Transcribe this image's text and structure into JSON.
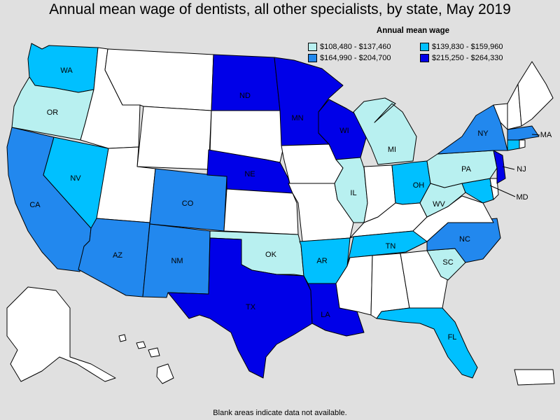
{
  "title": "Annual mean wage of dentists, all other specialists, by state, May 2019",
  "legend": {
    "title": "Annual mean wage",
    "items": [
      {
        "range": "$108,480 - $137,460",
        "color": "#b8f0f0"
      },
      {
        "range": "$139,830 - $159,960",
        "color": "#00c0ff"
      },
      {
        "range": "$164,990 - $204,700",
        "color": "#2288ee"
      },
      {
        "range": "$215,250 - $264,330",
        "color": "#0000e8"
      }
    ]
  },
  "note": "Blank areas indicate data not available.",
  "states": {
    "WA": {
      "label": "WA",
      "tier": 1
    },
    "OR": {
      "label": "OR",
      "tier": 0
    },
    "CA": {
      "label": "CA",
      "tier": 2
    },
    "NV": {
      "label": "NV",
      "tier": 1
    },
    "AZ": {
      "label": "AZ",
      "tier": 2
    },
    "CO": {
      "label": "CO",
      "tier": 2
    },
    "NM": {
      "label": "NM",
      "tier": 2
    },
    "ND": {
      "label": "ND",
      "tier": 3
    },
    "NE": {
      "label": "NE",
      "tier": 3
    },
    "MN": {
      "label": "MN",
      "tier": 3
    },
    "WI": {
      "label": "WI",
      "tier": 3
    },
    "TX": {
      "label": "TX",
      "tier": 3
    },
    "OK": {
      "label": "OK",
      "tier": 0
    },
    "AR": {
      "label": "AR",
      "tier": 1
    },
    "LA": {
      "label": "LA",
      "tier": 3
    },
    "IL": {
      "label": "IL",
      "tier": 0
    },
    "MI": {
      "label": "MI",
      "tier": 0
    },
    "OH": {
      "label": "OH",
      "tier": 1
    },
    "TN": {
      "label": "TN",
      "tier": 1
    },
    "WV": {
      "label": "WV",
      "tier": 0
    },
    "PA": {
      "label": "PA",
      "tier": 0
    },
    "NY": {
      "label": "NY",
      "tier": 2
    },
    "NC": {
      "label": "NC",
      "tier": 2
    },
    "SC": {
      "label": "SC",
      "tier": 0
    },
    "FL": {
      "label": "FL",
      "tier": 1
    },
    "MA": {
      "label": "MA",
      "tier": 2
    },
    "NJ": {
      "label": "NJ",
      "tier": 3
    },
    "MD": {
      "label": "MD",
      "tier": 1
    },
    "CT": {
      "label": "",
      "tier": 1
    },
    "ME": {
      "label": "",
      "tier": -1
    },
    "NH": {
      "label": "",
      "tier": -1
    },
    "VT": {
      "label": "",
      "tier": -1
    },
    "RI": {
      "label": "",
      "tier": -1
    },
    "DE": {
      "label": "",
      "tier": -1
    },
    "VA": {
      "label": "",
      "tier": -1
    },
    "KY": {
      "label": "",
      "tier": -1
    },
    "IN": {
      "label": "",
      "tier": -1
    },
    "IA": {
      "label": "",
      "tier": -1
    },
    "MO": {
      "label": "",
      "tier": -1
    },
    "KS": {
      "label": "",
      "tier": -1
    },
    "SD": {
      "label": "",
      "tier": -1
    },
    "MT": {
      "label": "",
      "tier": -1
    },
    "ID": {
      "label": "",
      "tier": -1
    },
    "WY": {
      "label": "",
      "tier": -1
    },
    "UT": {
      "label": "",
      "tier": -1
    },
    "MS": {
      "label": "",
      "tier": -1
    },
    "AL": {
      "label": "",
      "tier": -1
    },
    "GA": {
      "label": "",
      "tier": -1
    },
    "AK": {
      "label": "",
      "tier": -1
    },
    "HI": {
      "label": "",
      "tier": -1
    },
    "PR": {
      "label": "",
      "tier": -1
    }
  }
}
